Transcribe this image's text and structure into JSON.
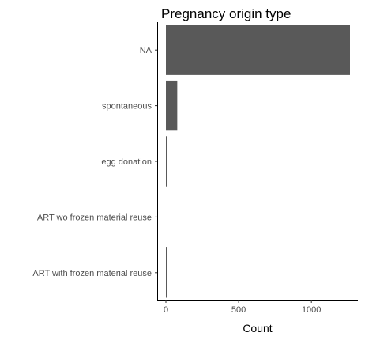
{
  "chart_data": {
    "type": "bar",
    "orientation": "horizontal",
    "title": "Pregnancy origin type",
    "xlabel": "Count",
    "ylabel": "",
    "categories": [
      "NA",
      "spontaneous",
      "egg donation",
      "ART wo frozen material reuse",
      "ART with frozen material reuse"
    ],
    "values": [
      1265,
      78,
      4,
      0,
      3
    ],
    "xlim": [
      0,
      1265
    ],
    "x_ticks": [
      0,
      500,
      1000
    ],
    "x_tick_labels": [
      "0",
      "500",
      "1000"
    ],
    "grid": false,
    "legend": "none",
    "bar_color": "#595959"
  }
}
